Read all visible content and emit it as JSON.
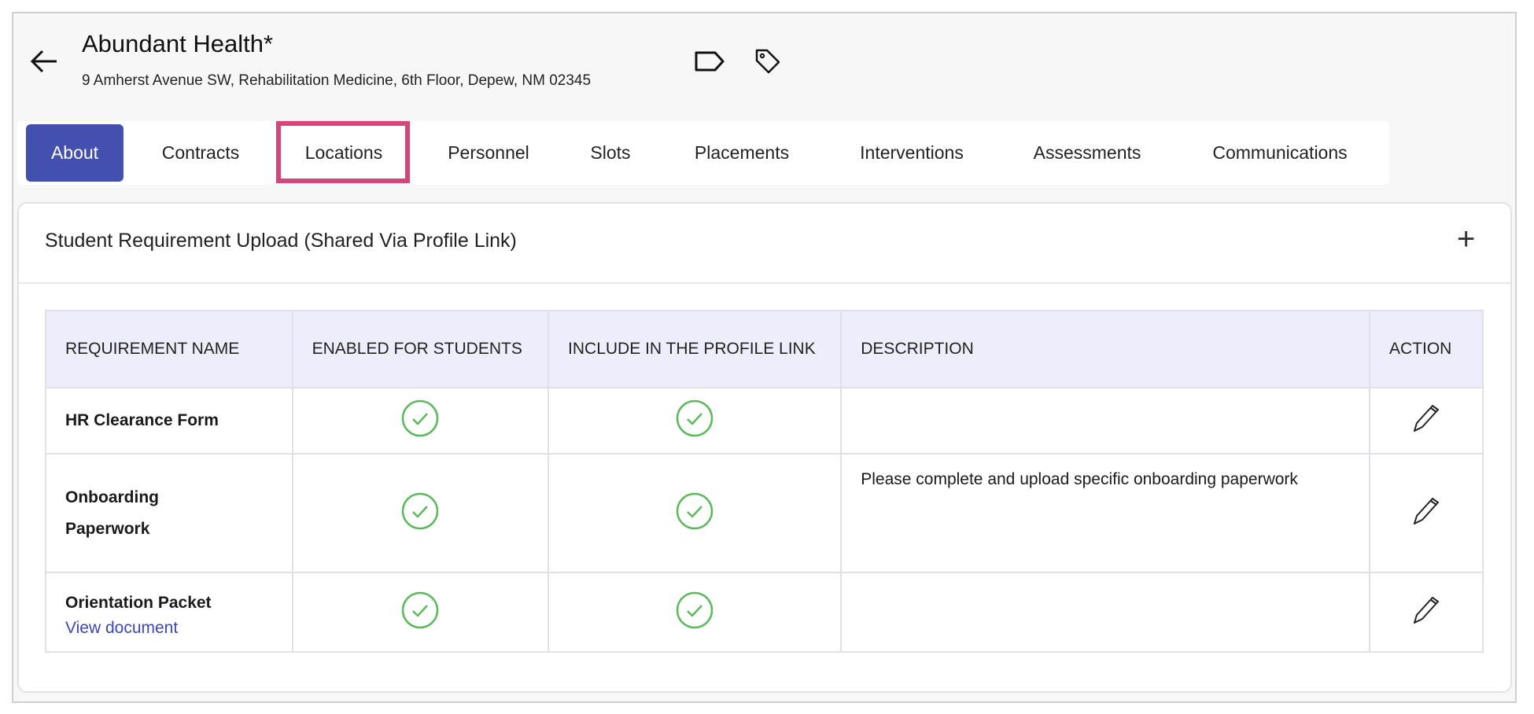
{
  "header": {
    "title": "Abundant Health*",
    "address": "9 Amherst Avenue SW, Rehabilitation Medicine, 6th Floor, Depew, NM 02345",
    "icons": [
      "back-arrow-icon",
      "label-icon",
      "tag-icon"
    ]
  },
  "tabs": [
    {
      "label": "About",
      "active": true
    },
    {
      "label": "Contracts"
    },
    {
      "label": "Locations",
      "highlighted": true
    },
    {
      "label": "Personnel"
    },
    {
      "label": "Slots"
    },
    {
      "label": "Placements"
    },
    {
      "label": "Interventions"
    },
    {
      "label": "Assessments"
    },
    {
      "label": "Communications"
    }
  ],
  "card": {
    "title": "Student Requirement Upload (Shared Via Profile Link)",
    "add_icon": "plus-icon"
  },
  "table": {
    "headers": [
      "REQUIREMENT NAME",
      "ENABLED FOR STUDENTS",
      "INCLUDE IN THE PROFILE LINK",
      "DESCRIPTION",
      "ACTION"
    ],
    "rows": [
      {
        "name": "HR Clearance Form",
        "enabled": true,
        "include": true,
        "description": ""
      },
      {
        "name": "Onboarding Paperwork",
        "enabled": true,
        "include": true,
        "description": "Please complete and upload specific onboarding paperwork"
      },
      {
        "name": "Orientation Packet",
        "link": "View document",
        "enabled": true,
        "include": true,
        "description": ""
      }
    ]
  },
  "colors": {
    "accent": "#4450b0",
    "highlight": "#d4467a",
    "check": "#5cb85c",
    "header_bg": "#ededfc",
    "link": "#3a47b5"
  }
}
